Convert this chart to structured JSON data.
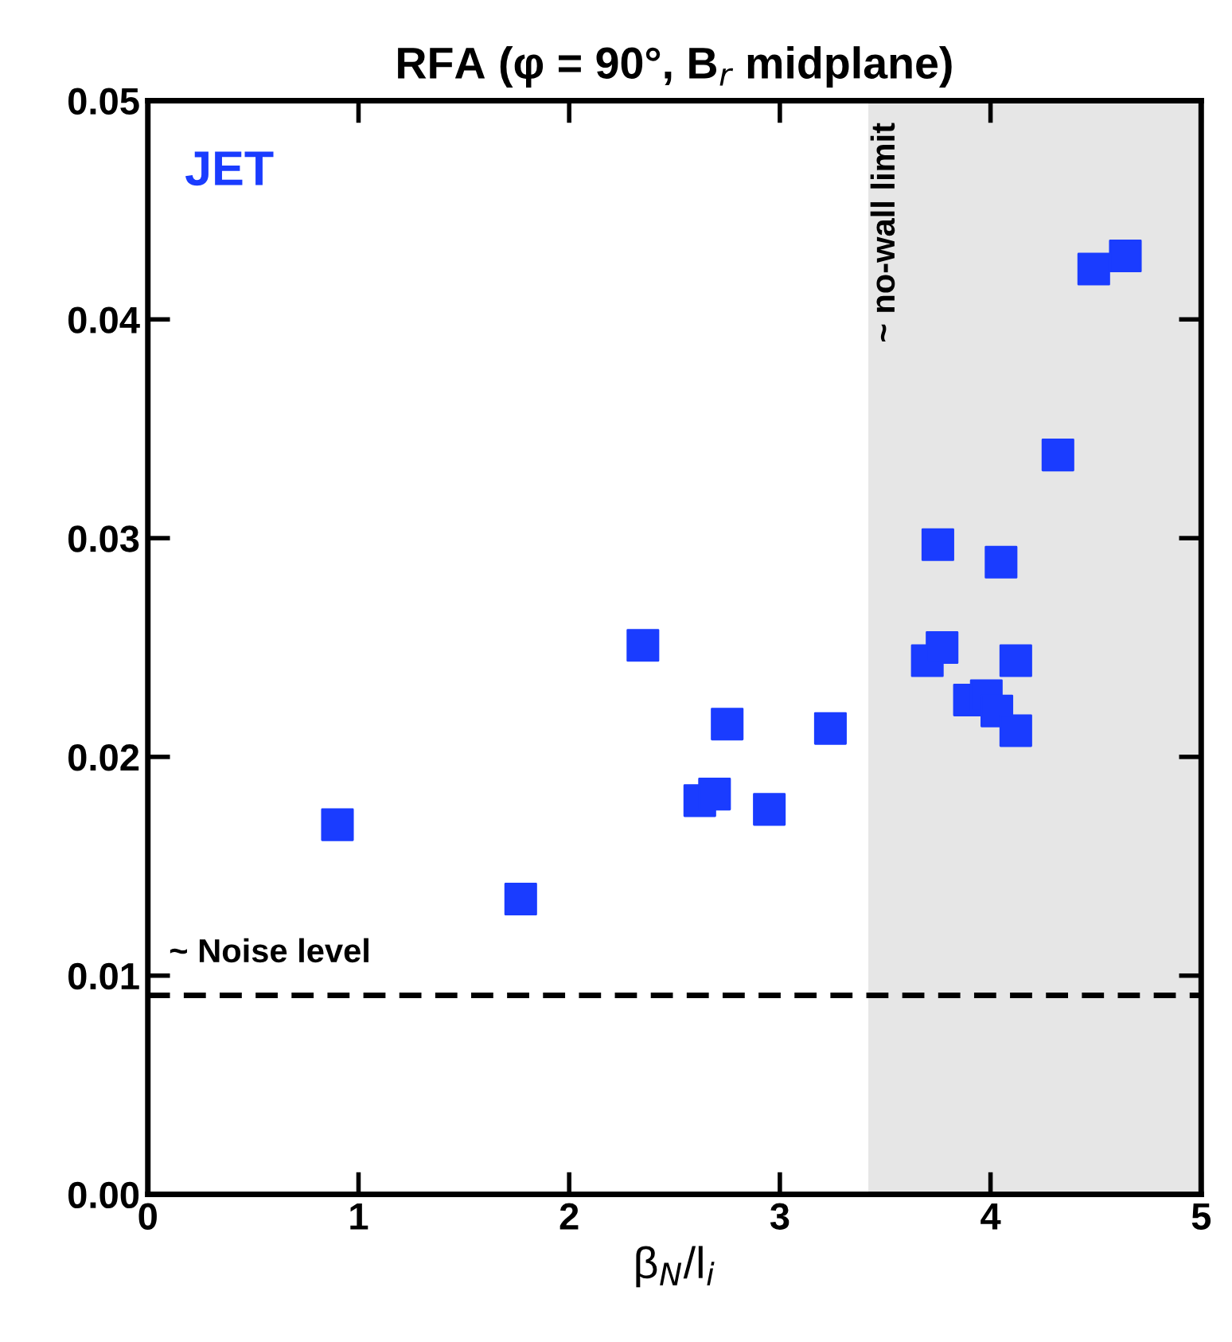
{
  "chart_data": {
    "type": "scatter",
    "title": "RFA (φ = 90°, B$_{r}$ midplane)",
    "xlabel": "β$_{N}$/l$_{i}$",
    "annotations": [
      "JET"
    ],
    "xlim": [
      0,
      5
    ],
    "xticks": [
      0,
      1,
      2,
      3,
      4,
      5
    ],
    "ylim": [
      0,
      0.05
    ],
    "yticks": [
      {
        "value": 0,
        "label": "0.00"
      },
      {
        "value": 0.01,
        "label": "0.01"
      },
      {
        "value": 0.02,
        "label": "0.02"
      },
      {
        "value": 0.03,
        "label": "0.03"
      },
      {
        "value": 0.04,
        "label": "0.04"
      },
      {
        "value": 0.05,
        "label": "0.05"
      }
    ],
    "grid": false,
    "legend": false,
    "marker": "square",
    "series": [
      {
        "color": "#1a3cff",
        "x": [
          0.9,
          1.77,
          2.35,
          2.75,
          2.62,
          2.69,
          2.95,
          3.24,
          3.75,
          3.7,
          3.77,
          3.9,
          3.98,
          4.03,
          4.05,
          4.12,
          4.12,
          4.32,
          4.49,
          4.64
        ],
        "values": [
          0.0169,
          0.0135,
          0.0251,
          0.0215,
          0.018,
          0.0183,
          0.0176,
          0.0213,
          0.0297,
          0.0244,
          0.025,
          0.0226,
          0.0228,
          0.0221,
          0.0289,
          0.0244,
          0.0212,
          0.0338,
          0.0423,
          0.0429
        ]
      }
    ],
    "ref_lines": [
      {
        "axis": "y",
        "value": 0.0091,
        "label": "~ Noise level",
        "color": "#000000",
        "line_style": "dashed"
      }
    ],
    "bands": [
      {
        "axis": "x",
        "from": 3.42,
        "to": 5,
        "label": "~ no-wall limit",
        "color": "#e6e6e6"
      }
    ]
  }
}
